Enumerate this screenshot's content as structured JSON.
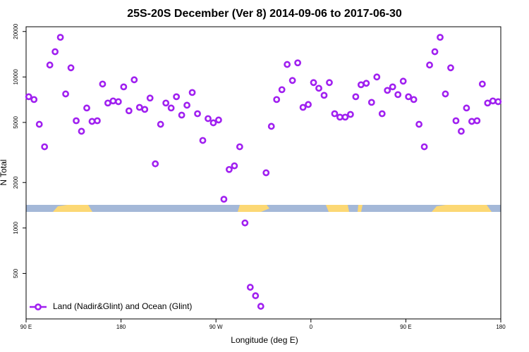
{
  "chart_data": {
    "type": "scatter",
    "title": "25S-20S December (Ver 8)   2014-09-06 to 2017-06-30",
    "xlabel": "Longitude (deg E)",
    "ylabel": "N Total",
    "ylog": true,
    "grid": false,
    "legend": "bottom-left",
    "xlim": [
      90,
      540
    ],
    "ylim": [
      250,
      21500
    ],
    "xticks": [
      {
        "value": 90,
        "label": "90 E"
      },
      {
        "value": 180,
        "label": "180"
      },
      {
        "value": 270,
        "label": "90 W"
      },
      {
        "value": 360,
        "label": "0"
      },
      {
        "value": 450,
        "label": "90 E"
      },
      {
        "value": 540,
        "label": "180"
      }
    ],
    "yticks": [
      500,
      1000,
      2000,
      5000,
      10000,
      20000
    ],
    "series": [
      {
        "name": "Land (Nadir&Glint) and Ocean (Glint)",
        "color": "#a020f0",
        "x": [
          92.5,
          97.5,
          102.5,
          107.5,
          112.5,
          117.5,
          122.5,
          127.5,
          132.5,
          137.5,
          142.5,
          147.5,
          152.5,
          157.5,
          162.5,
          167.5,
          172.5,
          177.5,
          182.5,
          187.5,
          192.5,
          197.5,
          202.5,
          207.5,
          212.5,
          217.5,
          222.5,
          227.5,
          232.5,
          237.5,
          242.5,
          247.5,
          252.5,
          257.5,
          262.5,
          267.5,
          272.5,
          277.5,
          282.5,
          287.5,
          292.5,
          297.5,
          302.5,
          307.5,
          312.5,
          317.5,
          322.5,
          327.5,
          332.5,
          337.5,
          342.5,
          347.5,
          352.5,
          357.5,
          362.5,
          367.5,
          372.5,
          377.5,
          382.5,
          387.5,
          392.5,
          397.5,
          402.5,
          407.5,
          412.5,
          417.5,
          422.5,
          427.5,
          432.5,
          437.5,
          442.5,
          447.5,
          452.5,
          457.5,
          462.5,
          467.5,
          472.5,
          477.5,
          482.5,
          487.5,
          492.5,
          497.5,
          502.5,
          507.5,
          512.5,
          517.5,
          522.5,
          527.5,
          532.5,
          537.5
        ],
        "values": [
          7400,
          7090,
          4860,
          3450,
          12000,
          14700,
          18300,
          7720,
          11500,
          5130,
          4370,
          6230,
          5080,
          5130,
          8980,
          6720,
          6940,
          6860,
          8600,
          5970,
          9580,
          6290,
          6100,
          7250,
          2660,
          4860,
          6720,
          6230,
          7400,
          5590,
          6500,
          7890,
          5710,
          3800,
          5300,
          4970,
          5190,
          1550,
          2440,
          2580,
          3450,
          1080,
          405,
          356,
          303,
          2320,
          4710,
          7090,
          8240,
          12100,
          9480,
          12400,
          6290,
          6570,
          9180,
          8420,
          7560,
          9180,
          5710,
          5420,
          5420,
          5650,
          7400,
          8880,
          9080,
          6790,
          10000,
          5710,
          8150,
          8600,
          7640,
          9380,
          7400,
          7090,
          4860,
          3450,
          12000,
          14700,
          18300,
          7720,
          11500,
          5130,
          4370,
          6230,
          5080,
          5130,
          8980,
          6720,
          6940,
          6860
        ]
      }
    ]
  }
}
